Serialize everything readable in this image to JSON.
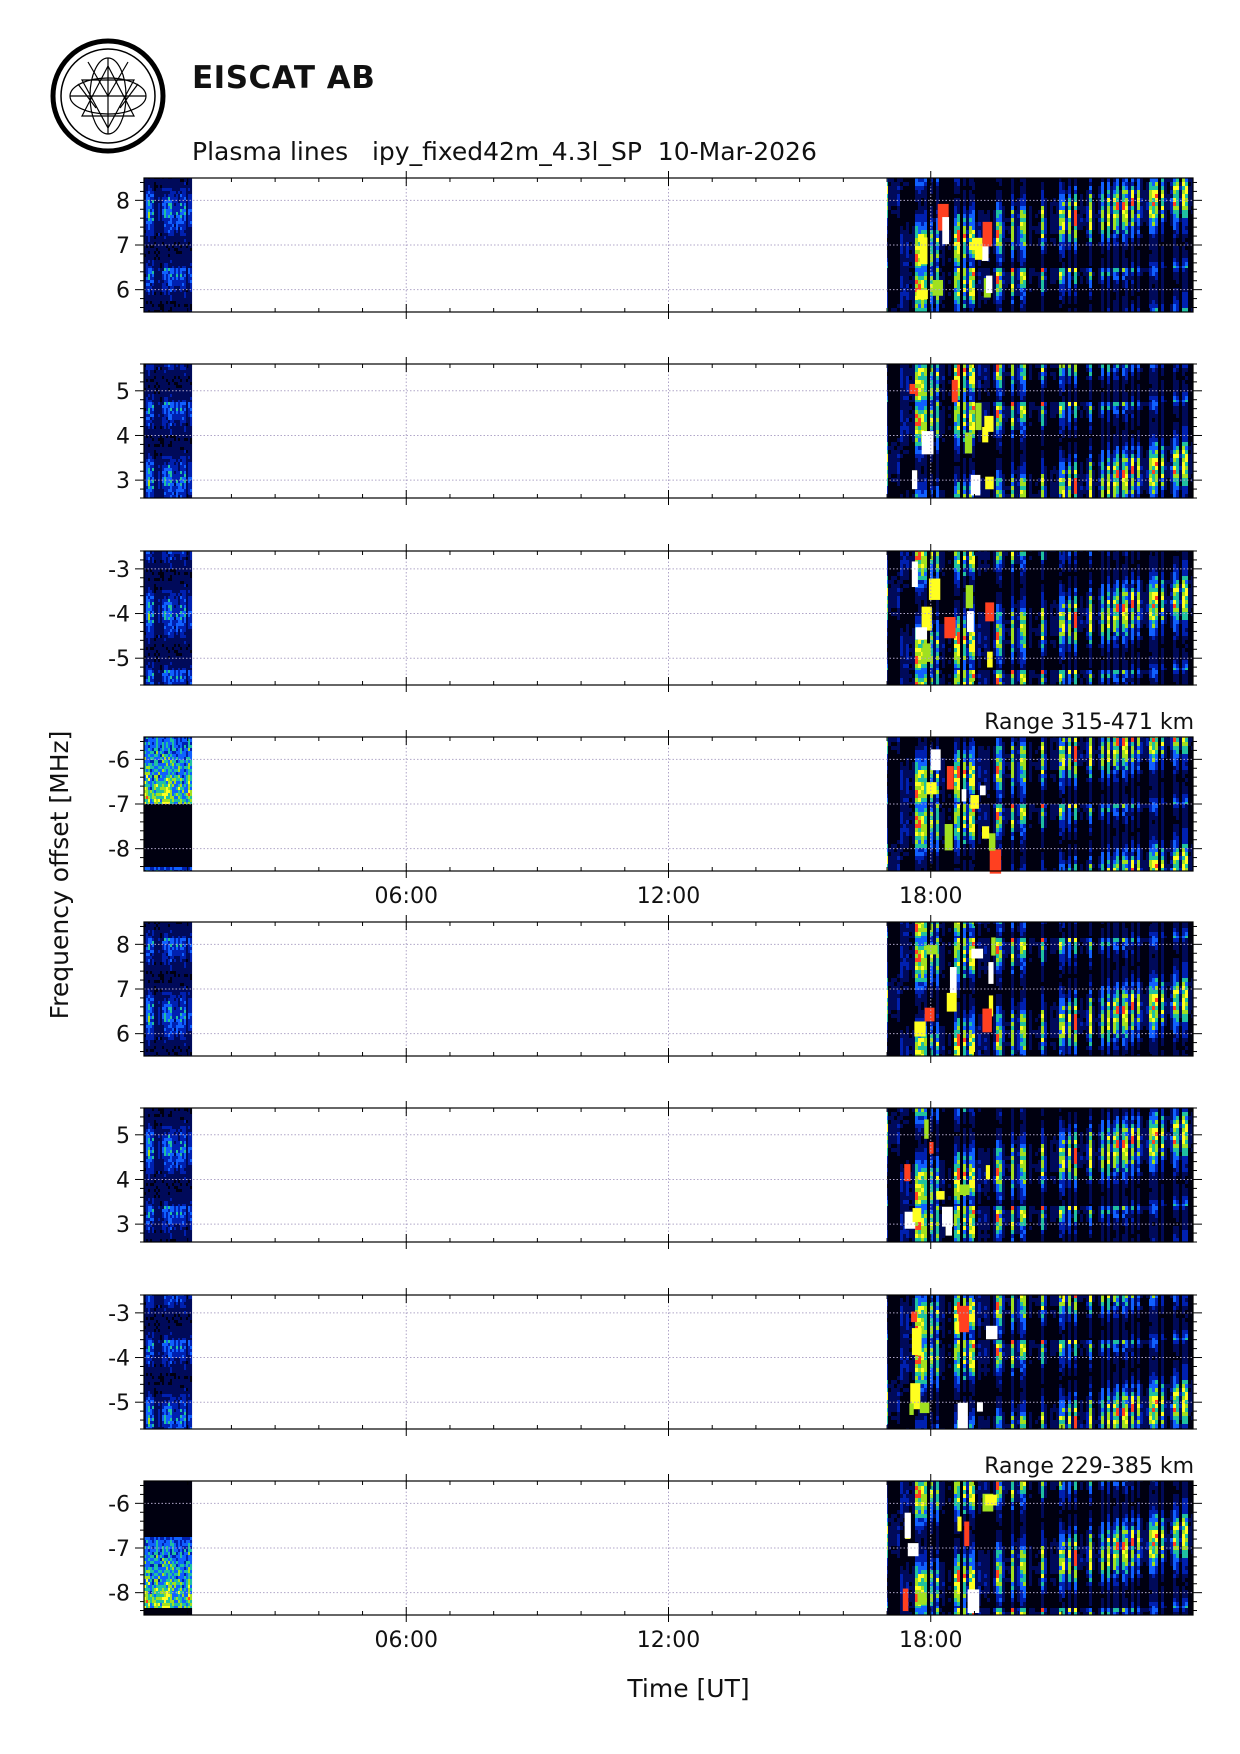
{
  "header": {
    "organization": "EISCAT AB",
    "plot_title": "Plasma lines   ipy_fixed42m_4.3l_SP  10-Mar-2026"
  },
  "chart_data": {
    "type": "heatmap",
    "title": "Plasma lines   ipy_fixed42m_4.3l_SP  10-Mar-2026",
    "xlabel": "Time [UT]",
    "ylabel": "Frequency offset [MHz]",
    "xlim_hours": [
      0,
      24
    ],
    "x_ticks": [
      {
        "h": 6,
        "label": "06:00"
      },
      {
        "h": 12,
        "label": "12:00"
      },
      {
        "h": 18,
        "label": "18:00"
      }
    ],
    "data_intervals_hours": [
      [
        0,
        1.1
      ],
      [
        17.0,
        24.0
      ]
    ],
    "colormap": [
      "#000000",
      "#000a5a",
      "#0020b0",
      "#1060ff",
      "#20c0a0",
      "#a0e020",
      "#ffff20",
      "#ff4020",
      "#ffffff"
    ],
    "panel_groups": [
      {
        "range_label": "Range 315-471 km",
        "panels": [
          {
            "ylim": [
              5.5,
              8.5
            ],
            "yticks": [
              6,
              7,
              8
            ],
            "tick_labels": [
              "6",
              "7",
              "8"
            ]
          },
          {
            "ylim": [
              2.6,
              5.6
            ],
            "yticks": [
              3,
              4,
              5
            ],
            "tick_labels": [
              "3",
              "4",
              "5"
            ]
          },
          {
            "ylim": [
              -5.6,
              -2.6
            ],
            "yticks": [
              -5,
              -4,
              -3
            ],
            "tick_labels": [
              "-5",
              "-4",
              "-3"
            ]
          },
          {
            "ylim": [
              -8.5,
              -5.5
            ],
            "yticks": [
              -8,
              -7,
              -6
            ],
            "tick_labels": [
              "-8",
              "-7",
              "-6"
            ]
          }
        ]
      },
      {
        "range_label": "Range 229-385 km",
        "panels": [
          {
            "ylim": [
              5.5,
              8.5
            ],
            "yticks": [
              6,
              7,
              8
            ],
            "tick_labels": [
              "6",
              "7",
              "8"
            ]
          },
          {
            "ylim": [
              2.6,
              5.6
            ],
            "yticks": [
              3,
              4,
              5
            ],
            "tick_labels": [
              "3",
              "4",
              "5"
            ]
          },
          {
            "ylim": [
              -5.6,
              -2.6
            ],
            "yticks": [
              -5,
              -4,
              -3
            ],
            "tick_labels": [
              "-5",
              "-4",
              "-3"
            ]
          },
          {
            "ylim": [
              -8.5,
              -5.5
            ],
            "yticks": [
              -8,
              -7,
              -6
            ],
            "tick_labels": [
              "-8",
              "-7",
              "-6"
            ]
          }
        ]
      }
    ]
  }
}
